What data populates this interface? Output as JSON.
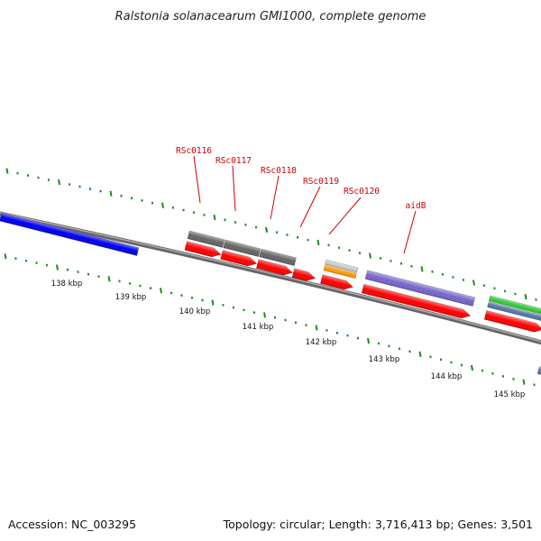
{
  "map": {
    "title": "Ralstonia solanacearum GMI1000, complete genome",
    "accession": "Accession: NC_003295",
    "summary": "Topology: circular; Length: 3,716,413 bp; Genes: 3,501"
  },
  "scale_ticks": [
    "138 kbp",
    "139 kbp",
    "140 kbp",
    "141 kbp",
    "142 kbp",
    "143 kbp",
    "144 kbp",
    "145 kbp"
  ],
  "gene_labels": [
    "RSc0116",
    "RSc0117",
    "RSc0118",
    "RSc0119",
    "RSc0120",
    "aidB"
  ],
  "colors": {
    "forward_cds": "#ff0000",
    "reverse_cds": "#0000ee",
    "gray_feature": "#666666",
    "orange_feature": "#ff9900",
    "purple_feature": "#7766cc",
    "green_feature": "#33cc33",
    "steelblue_feature": "#5577aa",
    "tick_mark": "#228822",
    "label_text": "#cc0000",
    "backbone": "#888888"
  }
}
